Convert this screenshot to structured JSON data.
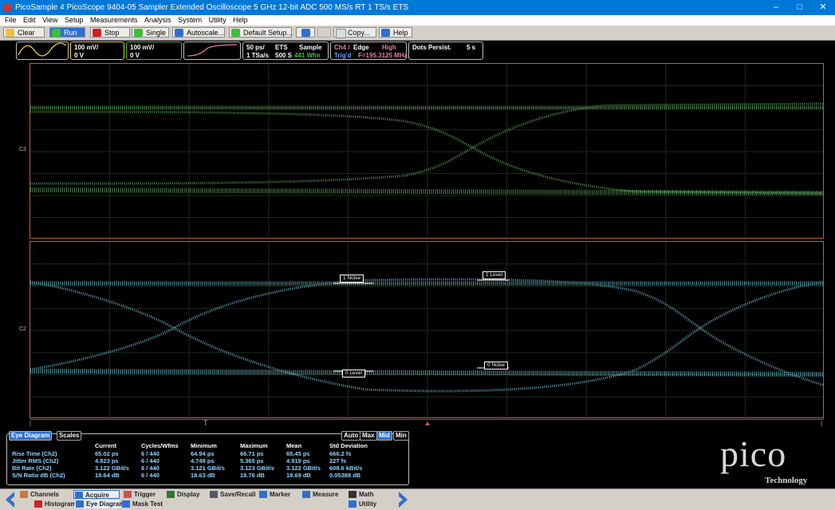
{
  "window": {
    "title": "PicoSample 4   PicoScope 9404-05   Sampler Extended Oscilloscope   5 GHz   12-bit ADC   500 MS/s RT   1 TS/s ETS",
    "controls": [
      "–",
      "□",
      "✕"
    ]
  },
  "menu": [
    "File",
    "Edit",
    "View",
    "Setup",
    "Measurements",
    "Analysis",
    "System",
    "Utility",
    "Help"
  ],
  "toolbar": {
    "clear": "Clear",
    "run": "Run",
    "stop": "Stop",
    "single": "Single",
    "autoscale": "Autoscale...",
    "default_setup": "Default Setup...",
    "copy": "Copy...",
    "help": "Help"
  },
  "info": {
    "ch1_scale": "100 mV/",
    "ch1_offset": "0 V",
    "ch2_scale": "100 mV/",
    "ch2_offset": "0 V",
    "timebase": "50 ps/",
    "mode": "ETS",
    "acq": "Sample",
    "sample_rate": "1 TSa/s",
    "record": "500 S",
    "waveforms": "441 Wfm",
    "trig_src": "Ch4 /",
    "trig_type": "Edge",
    "trig_level": "High",
    "trig_state": "Trig'd",
    "trig_freq": "F=195.3125 MHz",
    "persist": "Dots Persist.",
    "persist_time": "5 s"
  },
  "channels": {
    "top": "C3",
    "bottom": "C2"
  },
  "markers": {
    "one_noise": "1 Noise",
    "one_level": "1 Level",
    "zero_level": "0 Level",
    "zero_noise": "0 Noise"
  },
  "colors": {
    "trace_top": "#5a9a5a",
    "trace_bottom": "#6ab0c0",
    "frame": "#c0603a"
  },
  "measurements": {
    "tabs": [
      "Eye Diagram",
      "Scales"
    ],
    "modes": [
      "Auto",
      "Max",
      "Mid",
      "Min"
    ],
    "active_mode": "Mid",
    "headers": [
      "Current",
      "Cycles/Wfms",
      "Minimum",
      "Maximum",
      "Mean",
      "Std Deviation"
    ],
    "rows": [
      {
        "name": "Rise Time (Ch2)",
        "current": "65.02 ps",
        "cycles": "6 / 440",
        "min": "64.94 ps",
        "max": "66.71 ps",
        "mean": "65.45 ps",
        "std": "666.2 fs"
      },
      {
        "name": "Jitter RMS (Ch2)",
        "current": "4.823 ps",
        "cycles": "6 / 440",
        "min": "4.748 ps",
        "max": "5.365 ps",
        "mean": "4.919 ps",
        "std": "227 fs"
      },
      {
        "name": "Bit Rate (Ch2)",
        "current": "3.122 GBit/s",
        "cycles": "6 / 440",
        "min": "3.121 GBit/s",
        "max": "3.123 GBit/s",
        "mean": "3.122 GBit/s",
        "std": "608.6 kBit/s"
      },
      {
        "name": "S/N Ratio dB (Ch2)",
        "current": "18.64 dB",
        "cycles": "6 / 440",
        "min": "18.63 dB",
        "max": "18.76 dB",
        "mean": "18.69 dB",
        "std": "0.05388 dB"
      }
    ]
  },
  "logo": {
    "name": "pico",
    "sub": "Technology"
  },
  "bottom": {
    "channels": "Channels",
    "acquire": "Acquire",
    "trigger": "Trigger",
    "display": "Display",
    "save_recall": "Save/Recall",
    "marker": "Marker",
    "measure": "Measure",
    "math": "Math",
    "histogram": "Histogram",
    "eye_diagram": "Eye Diagram",
    "mask_test": "Mask Test",
    "utility": "Utility"
  }
}
